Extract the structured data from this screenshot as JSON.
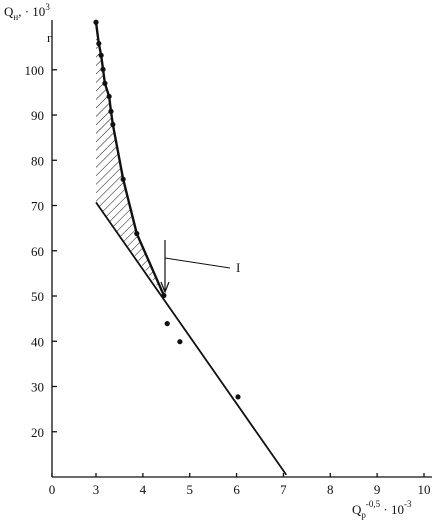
{
  "chart_data": {
    "type": "scatter",
    "y_label": {
      "main": "Q",
      "sub": "н",
      "mid": ", · 10",
      "sup": "3"
    },
    "y_unit": "г",
    "x_label": {
      "main": "Q",
      "sub": "р",
      "sup": "-0,5",
      "mid": " · 10",
      "sup2": "-3"
    },
    "annotation": "I",
    "xlim": [
      0,
      10
    ],
    "x_break": [
      0,
      3
    ],
    "xticks": [
      0,
      3,
      4,
      5,
      6,
      7,
      8,
      9,
      10
    ],
    "ylim": [
      10,
      111
    ],
    "yticks": [
      20,
      30,
      40,
      50,
      60,
      70,
      80,
      90,
      100
    ],
    "color": "#111111",
    "hatched": true,
    "series": [
      {
        "connected": true,
        "x": [
          3.0,
          3.06,
          3.11,
          3.15,
          3.19,
          3.28,
          3.32,
          3.36,
          3.58,
          3.87,
          4.45
        ],
        "y": [
          110.5,
          105.8,
          103.2,
          100.1,
          97.0,
          94.1,
          90.8,
          87.9,
          75.8,
          63.8,
          50.1
        ]
      },
      {
        "connected": false,
        "x": [
          4.52,
          4.79,
          6.03
        ],
        "y": [
          43.9,
          39.9,
          27.7
        ]
      }
    ],
    "fit_line": {
      "x": [
        3.0,
        7.06
      ],
      "y": [
        70.7,
        10.5
      ]
    }
  }
}
